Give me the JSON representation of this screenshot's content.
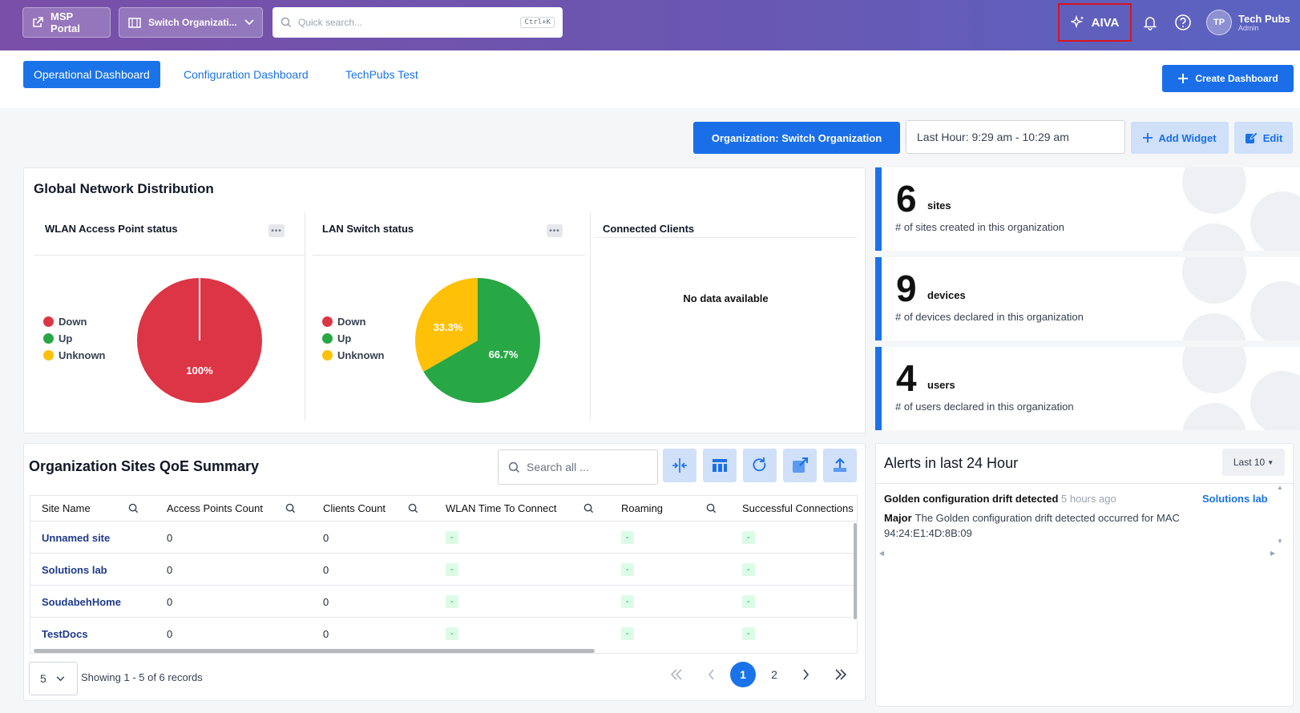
{
  "topbar": {
    "msp_portal": "MSP Portal",
    "switch_org": "Switch Organizati...",
    "search_placeholder": "Quick search...",
    "search_shortcut": "Ctrl+K",
    "aiva": "AIVA",
    "user_initials": "TP",
    "user_name": "Tech Pubs",
    "user_role": "Admin"
  },
  "tabs": [
    "Operational Dashboard",
    "Configuration Dashboard",
    "TechPubs Test"
  ],
  "create_dashboard": "Create Dashboard",
  "toolbar": {
    "org_button": "Organization: Switch Organization",
    "time_range": "Last Hour: 9:29 am - 10:29 am",
    "add_widget": "Add Widget",
    "edit": "Edit"
  },
  "gnd": {
    "title": "Global Network Distribution",
    "wlan_title": "WLAN Access Point status",
    "lan_title": "LAN Switch status",
    "clients_title": "Connected Clients",
    "no_data": "No data available",
    "legend": [
      "Down",
      "Up",
      "Unknown"
    ],
    "wlan_label": "100%",
    "lan_label_unknown": "33.3%",
    "lan_label_up": "66.7%",
    "colors": {
      "down": "#dc3545",
      "up": "#28a745",
      "unknown": "#ffc107"
    }
  },
  "chart_data": [
    {
      "type": "pie",
      "title": "WLAN Access Point status",
      "categories": [
        "Down",
        "Up",
        "Unknown"
      ],
      "values": [
        100,
        0,
        0
      ]
    },
    {
      "type": "pie",
      "title": "LAN Switch status",
      "categories": [
        "Down",
        "Up",
        "Unknown"
      ],
      "values": [
        0,
        66.7,
        33.3
      ]
    }
  ],
  "stats": [
    {
      "num": "6",
      "unit": "sites",
      "desc": "# of sites created in this organization"
    },
    {
      "num": "9",
      "unit": "devices",
      "desc": "# of devices declared in this organization"
    },
    {
      "num": "4",
      "unit": "users",
      "desc": "# of users declared in this organization"
    }
  ],
  "qoe": {
    "title": "Organization Sites QoE Summary",
    "search_placeholder": "Search all ...",
    "columns": [
      "Site Name",
      "Access Points Count",
      "Clients Count",
      "WLAN Time To Connect",
      "Roaming",
      "Successful Connections"
    ],
    "rows": [
      {
        "site": "Unnamed site",
        "ap": "0",
        "clients": "0",
        "ttc": "-",
        "roam": "-",
        "succ": "-"
      },
      {
        "site": "Solutions lab",
        "ap": "0",
        "clients": "0",
        "ttc": "-",
        "roam": "-",
        "succ": "-"
      },
      {
        "site": "SoudabehHome",
        "ap": "0",
        "clients": "0",
        "ttc": "-",
        "roam": "-",
        "succ": "-"
      },
      {
        "site": "TestDocs",
        "ap": "0",
        "clients": "0",
        "ttc": "-",
        "roam": "-",
        "succ": "-"
      }
    ],
    "page_size": "5",
    "showing": "Showing 1 - 5 of 6 records",
    "pages": [
      "1",
      "2"
    ]
  },
  "alerts": {
    "title": "Alerts in last 24 Hour",
    "filter": "Last 10",
    "item_title": "Golden configuration drift detected",
    "item_time": "5 hours ago",
    "item_site": "Solutions lab",
    "item_severity": "Major",
    "item_body": "The Golden configuration drift detected occurred for MAC 94:24:E1:4D:8B:09"
  }
}
